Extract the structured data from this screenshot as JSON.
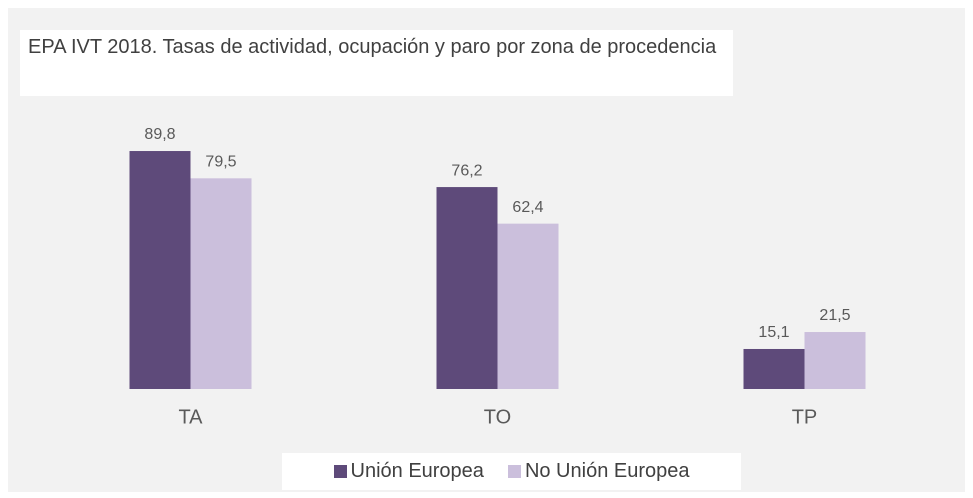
{
  "chart_data": {
    "type": "bar",
    "title": "EPA IVT  2018. Tasas de actividad, ocupación y paro por zona de procedencia",
    "categories": [
      "TA",
      "TO",
      "TP"
    ],
    "series": [
      {
        "name": "Unión Europea",
        "color": "#5e4a7a",
        "values": [
          89.8,
          76.2,
          15.1
        ],
        "value_labels": [
          "89,8",
          "76,2",
          "15,1"
        ]
      },
      {
        "name": "No Unión Europea",
        "color": "#cbbfdc",
        "values": [
          79.5,
          62.4,
          21.5
        ],
        "value_labels": [
          "79,5",
          "62,4",
          "21,5"
        ]
      }
    ],
    "ylim": [
      0,
      100
    ],
    "legend": "bottom"
  }
}
